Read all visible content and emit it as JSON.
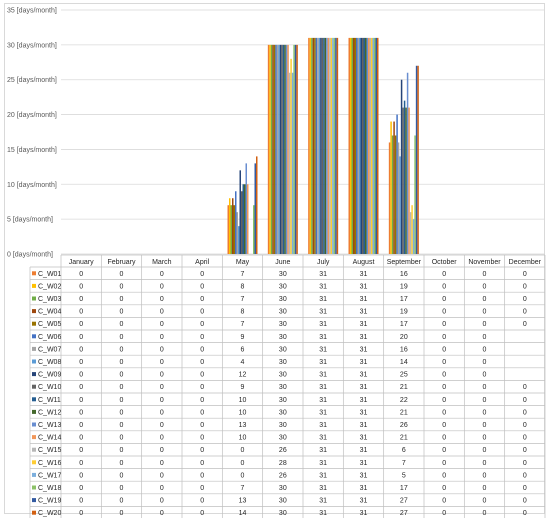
{
  "chart_data": {
    "type": "bar",
    "unit_label": "[days/month]",
    "ylim": [
      0,
      35
    ],
    "yticks": [
      0,
      5,
      10,
      15,
      20,
      25,
      30,
      35
    ],
    "categories": [
      "January",
      "February",
      "March",
      "April",
      "May",
      "June",
      "July",
      "August",
      "September",
      "October",
      "November",
      "December"
    ],
    "grid": true,
    "legend_placement": "data-table-left",
    "series": [
      {
        "name": "C_W01",
        "color": "#ED7D31",
        "values": [
          0,
          0,
          0,
          0,
          7,
          30,
          31,
          31,
          16,
          0,
          0,
          0
        ]
      },
      {
        "name": "C_W02",
        "color": "#FFC000",
        "values": [
          0,
          0,
          0,
          0,
          8,
          30,
          31,
          31,
          19,
          0,
          0,
          0
        ]
      },
      {
        "name": "C_W03",
        "color": "#70AD47",
        "values": [
          0,
          0,
          0,
          0,
          7,
          30,
          31,
          31,
          17,
          0,
          0,
          0
        ]
      },
      {
        "name": "C_W04",
        "color": "#9E480E",
        "values": [
          0,
          0,
          0,
          0,
          8,
          30,
          31,
          31,
          19,
          0,
          0,
          0
        ]
      },
      {
        "name": "C_W05",
        "color": "#997300",
        "values": [
          0,
          0,
          0,
          0,
          7,
          30,
          31,
          31,
          17,
          0,
          0,
          0
        ]
      },
      {
        "name": "C_W06",
        "color": "#4472C4",
        "values": [
          0,
          0,
          0,
          0,
          9,
          30,
          31,
          31,
          20,
          0,
          0,
          null
        ]
      },
      {
        "name": "C_W07",
        "color": "#A5A5A5",
        "values": [
          0,
          0,
          0,
          0,
          6,
          30,
          31,
          31,
          16,
          0,
          0,
          null
        ]
      },
      {
        "name": "C_W08",
        "color": "#5B9BD5",
        "values": [
          0,
          0,
          0,
          0,
          4,
          30,
          31,
          31,
          14,
          0,
          0,
          null
        ]
      },
      {
        "name": "C_W09",
        "color": "#264478",
        "values": [
          0,
          0,
          0,
          0,
          12,
          30,
          31,
          31,
          25,
          0,
          0,
          null
        ]
      },
      {
        "name": "C_W10",
        "color": "#636363",
        "values": [
          0,
          0,
          0,
          0,
          9,
          30,
          31,
          31,
          21,
          0,
          0,
          0
        ]
      },
      {
        "name": "C_W11",
        "color": "#255E91",
        "values": [
          0,
          0,
          0,
          0,
          10,
          30,
          31,
          31,
          22,
          0,
          0,
          0
        ]
      },
      {
        "name": "C_W12",
        "color": "#43682B",
        "values": [
          0,
          0,
          0,
          0,
          10,
          30,
          31,
          31,
          21,
          0,
          0,
          0
        ]
      },
      {
        "name": "C_W13",
        "color": "#698ED0",
        "values": [
          0,
          0,
          0,
          0,
          13,
          30,
          31,
          31,
          26,
          0,
          0,
          0
        ]
      },
      {
        "name": "C_W14",
        "color": "#F1975A",
        "values": [
          0,
          0,
          0,
          0,
          10,
          30,
          31,
          31,
          21,
          0,
          0,
          0
        ]
      },
      {
        "name": "C_W15",
        "color": "#B7B7B7",
        "values": [
          0,
          0,
          0,
          0,
          0,
          26,
          31,
          31,
          6,
          0,
          0,
          0
        ]
      },
      {
        "name": "C_W16",
        "color": "#FFCD33",
        "values": [
          0,
          0,
          0,
          0,
          0,
          28,
          31,
          31,
          7,
          0,
          0,
          0
        ]
      },
      {
        "name": "C_W17",
        "color": "#7CAFDD",
        "values": [
          0,
          0,
          0,
          0,
          0,
          26,
          31,
          31,
          5,
          0,
          0,
          0
        ]
      },
      {
        "name": "C_W18",
        "color": "#8CC168",
        "values": [
          0,
          0,
          0,
          0,
          7,
          30,
          31,
          31,
          17,
          0,
          0,
          0
        ]
      },
      {
        "name": "C_W19",
        "color": "#335AA1",
        "values": [
          0,
          0,
          0,
          0,
          13,
          30,
          31,
          31,
          27,
          0,
          0,
          0
        ]
      },
      {
        "name": "C_W20",
        "color": "#D26012",
        "values": [
          0,
          0,
          0,
          0,
          14,
          30,
          31,
          31,
          27,
          0,
          0,
          0
        ]
      }
    ]
  }
}
